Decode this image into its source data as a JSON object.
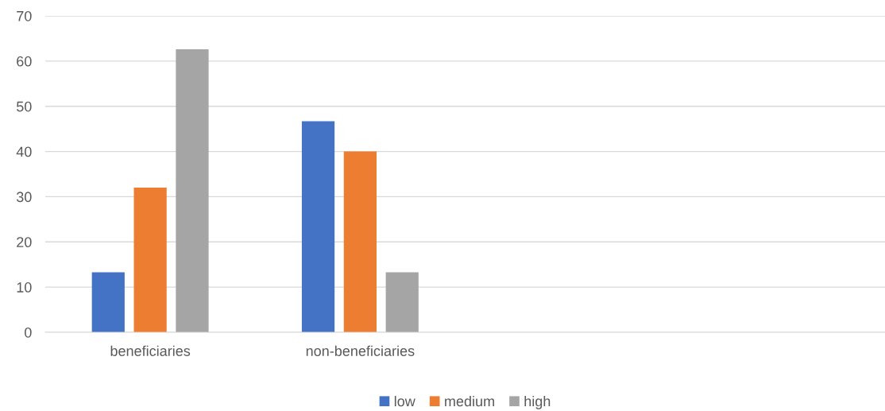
{
  "chart_data": {
    "type": "bar",
    "categories": [
      "beneficiaries",
      "non-beneficiaries",
      null,
      null
    ],
    "series": [
      {
        "name": "low",
        "color": "#4472c4",
        "values": [
          13.3,
          46.7,
          null,
          null
        ]
      },
      {
        "name": "medium",
        "color": "#ed7d31",
        "values": [
          32,
          40,
          null,
          null
        ]
      },
      {
        "name": "high",
        "color": "#a5a5a5",
        "values": [
          62.6,
          13.3,
          null,
          null
        ]
      }
    ],
    "ylim": [
      0,
      70
    ],
    "yticks": [
      0,
      10,
      20,
      30,
      40,
      50,
      60,
      70
    ],
    "grid": "y",
    "legend": "bottom"
  }
}
